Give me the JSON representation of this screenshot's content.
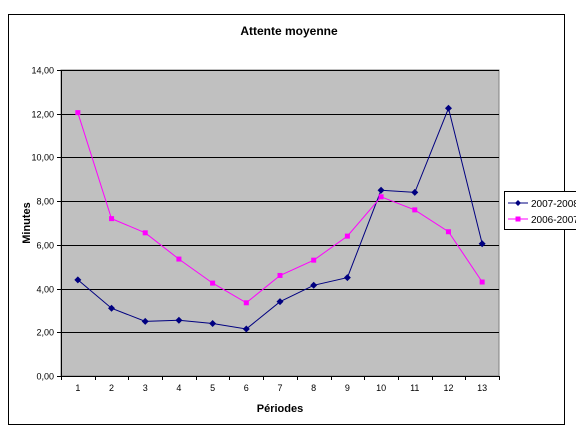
{
  "chart_data": {
    "type": "line",
    "title": "Attente moyenne",
    "xlabel": "Périodes",
    "ylabel": "Minutes",
    "ylim": [
      0,
      14
    ],
    "ytick_labels": [
      "0,00",
      "2,00",
      "4,00",
      "6,00",
      "8,00",
      "10,00",
      "12,00",
      "14,00"
    ],
    "categories": [
      "1",
      "2",
      "3",
      "4",
      "5",
      "6",
      "7",
      "8",
      "9",
      "10",
      "11",
      "12",
      "13"
    ],
    "grid": true,
    "legend_position": "right",
    "plot_background": "#c0c0c0",
    "series": [
      {
        "name": "2007-2008",
        "color": "#000080",
        "marker": "diamond",
        "values": [
          4.4,
          3.1,
          2.5,
          2.55,
          2.4,
          2.15,
          3.4,
          4.15,
          4.5,
          8.5,
          8.4,
          12.25,
          6.05
        ]
      },
      {
        "name": "2006-2007",
        "color": "#ff00ff",
        "marker": "square",
        "values": [
          12.05,
          7.2,
          6.55,
          5.35,
          4.25,
          3.35,
          4.6,
          5.3,
          6.4,
          8.2,
          7.6,
          6.6,
          4.3
        ]
      }
    ]
  }
}
